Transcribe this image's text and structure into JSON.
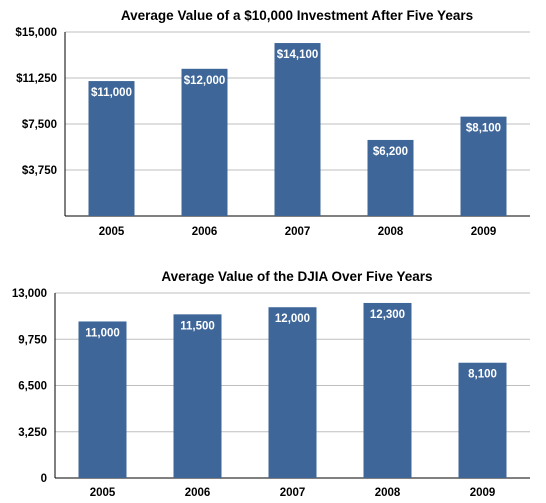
{
  "chart_data": [
    {
      "type": "bar",
      "title": "Average Value of a $10,000 Investment After Five Years",
      "xlabel": "",
      "ylabel": "",
      "categories": [
        "2005",
        "2006",
        "2007",
        "2008",
        "2009"
      ],
      "values": [
        11000,
        12000,
        14100,
        6200,
        8100
      ],
      "data_labels": [
        "$11,000",
        "$12,000",
        "$14,100",
        "$6,200",
        "$8,100"
      ],
      "yticks": [
        3750,
        7500,
        11250,
        15000
      ],
      "ytick_labels": [
        "$3,750",
        "$7,500",
        "$11,250",
        "$15,000"
      ],
      "ylim": [
        0,
        15000
      ],
      "grid": true,
      "bar_color": "#3e6699"
    },
    {
      "type": "bar",
      "title": "Average Value of the DJIA Over Five Years",
      "xlabel": "",
      "ylabel": "",
      "categories": [
        "2005",
        "2006",
        "2007",
        "2008",
        "2009"
      ],
      "values": [
        11000,
        11500,
        12000,
        12300,
        8100
      ],
      "data_labels": [
        "11,000",
        "11,500",
        "12,000",
        "12,300",
        "8,100"
      ],
      "yticks": [
        0,
        3250,
        6500,
        9750,
        13000
      ],
      "ytick_labels": [
        "0",
        "3,250",
        "6,500",
        "9,750",
        "13,000"
      ],
      "ylim": [
        0,
        13000
      ],
      "grid": true,
      "bar_color": "#3e6699"
    }
  ]
}
